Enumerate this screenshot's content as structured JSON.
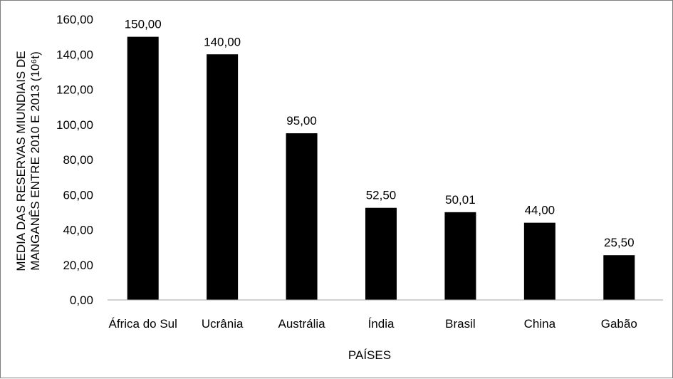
{
  "chart_data": {
    "type": "bar",
    "categories": [
      "África do Sul",
      "Ucrânia",
      "Austrália",
      "Índia",
      "Brasil",
      "China",
      "Gabão"
    ],
    "values": [
      150.0,
      140.0,
      95.0,
      52.5,
      50.01,
      44.0,
      25.5
    ],
    "data_labels": [
      "150,00",
      "140,00",
      "95,00",
      "52,50",
      "50,01",
      "44,00",
      "25,50"
    ],
    "y_ticks": [
      "0,00",
      "20,00",
      "40,00",
      "60,00",
      "80,00",
      "100,00",
      "120,00",
      "140,00",
      "160,00"
    ],
    "ylim": [
      0,
      160
    ],
    "xlabel": "PAÍSES",
    "ylabel_line1": "MEDIA DAS RESERVAS MIUNDIAIS DE",
    "ylabel_line2": "MANGANÊS ENTRE 2010 E 2013 (10⁶t)",
    "grid": false,
    "legend": "none",
    "bar_color": "#000000"
  }
}
